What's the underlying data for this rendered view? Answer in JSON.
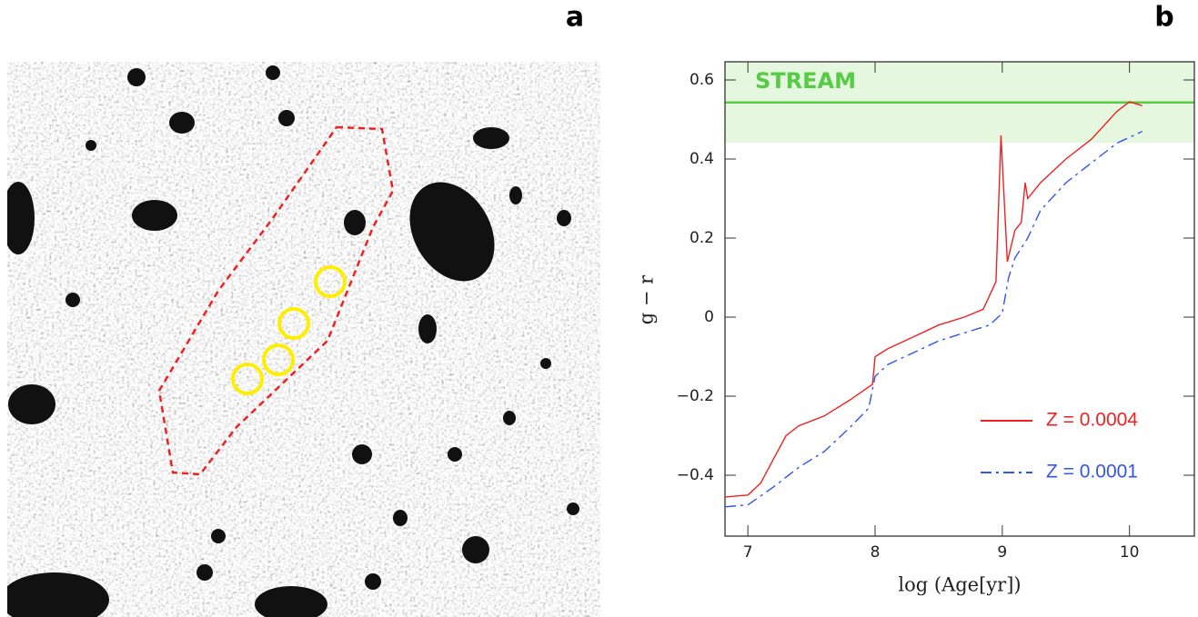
{
  "panel_labels": [
    "a",
    "b"
  ],
  "chart_data": {
    "type": "line",
    "xlabel": "log (Age[yr])",
    "ylabel": "g − r",
    "xlim": [
      6.82,
      10.51
    ],
    "ylim": [
      -0.554,
      0.646
    ],
    "xticks": [
      7,
      8,
      9,
      10
    ],
    "yticks": [
      {
        "value": -0.4,
        "label": "−0.4"
      },
      {
        "value": -0.2,
        "label": "−0.2"
      },
      0,
      0.2,
      0.4,
      0.6
    ],
    "band": {
      "label": "STREAM",
      "ymin": 0.441,
      "ymax": 0.646,
      "line": 0.543,
      "color": "#55cc44",
      "fill": "#e6f7df"
    },
    "series": [
      {
        "name": "Z = 0.0004",
        "color": "#ee2222",
        "style": "solid",
        "x": [
          6.82,
          7.0,
          7.1,
          7.2,
          7.3,
          7.4,
          7.6,
          7.8,
          7.98,
          8.0,
          8.1,
          8.3,
          8.5,
          8.7,
          8.85,
          8.95,
          8.99,
          9.04,
          9.1,
          9.15,
          9.18,
          9.2,
          9.3,
          9.5,
          9.7,
          9.9,
          10.0,
          10.1
        ],
        "values": [
          -0.455,
          -0.45,
          -0.42,
          -0.36,
          -0.3,
          -0.275,
          -0.25,
          -0.21,
          -0.17,
          -0.1,
          -0.08,
          -0.05,
          -0.02,
          0.0,
          0.02,
          0.09,
          0.46,
          0.14,
          0.22,
          0.24,
          0.34,
          0.3,
          0.34,
          0.4,
          0.45,
          0.52,
          0.545,
          0.535
        ]
      },
      {
        "name": "Z = 0.0001",
        "color": "#3355ee",
        "style": "dashdot",
        "x": [
          6.82,
          7.0,
          7.2,
          7.4,
          7.6,
          7.8,
          7.95,
          8.0,
          8.1,
          8.3,
          8.5,
          8.7,
          8.9,
          9.0,
          9.05,
          9.1,
          9.2,
          9.3,
          9.5,
          9.7,
          9.9,
          10.1
        ],
        "values": [
          -0.48,
          -0.475,
          -0.43,
          -0.38,
          -0.34,
          -0.28,
          -0.23,
          -0.15,
          -0.12,
          -0.09,
          -0.06,
          -0.04,
          -0.02,
          0.01,
          0.1,
          0.15,
          0.2,
          0.27,
          0.34,
          0.39,
          0.44,
          0.47
        ]
      }
    ]
  }
}
